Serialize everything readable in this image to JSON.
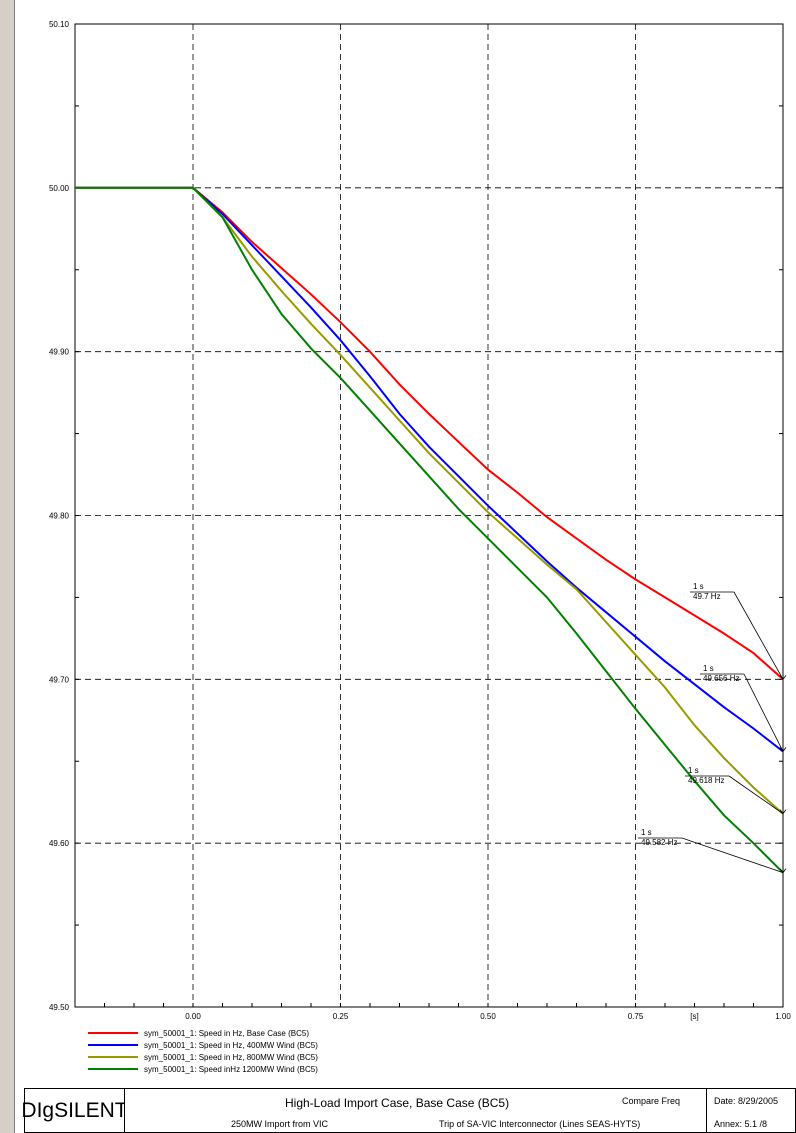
{
  "chart_data": {
    "type": "line",
    "xlabel": "[s]",
    "xlim": [
      -0.2,
      1.0
    ],
    "ylim": [
      49.5,
      50.1
    ],
    "x_ticks": [
      0.0,
      0.25,
      0.5,
      0.75,
      1.0
    ],
    "x_tick_labels": [
      "0.00",
      "0.25",
      "0.50",
      "0.75",
      "1.00"
    ],
    "y_ticks": [
      49.5,
      49.6,
      49.7,
      49.8,
      49.9,
      50.0,
      50.1
    ],
    "y_tick_labels": [
      "49.50",
      "49.60",
      "49.70",
      "49.80",
      "49.90",
      "50.00",
      "50.10"
    ],
    "grid": true,
    "legend_position": "bottom-left",
    "series": [
      {
        "name": "sym_50001_1: Speed in Hz, Base Case (BC5)",
        "color": "#ff0000",
        "x": [
          -0.2,
          0.0,
          0.05,
          0.1,
          0.15,
          0.2,
          0.25,
          0.3,
          0.35,
          0.4,
          0.45,
          0.5,
          0.55,
          0.6,
          0.65,
          0.7,
          0.75,
          0.8,
          0.85,
          0.9,
          0.95,
          1.0
        ],
        "y": [
          50.0,
          50.0,
          49.985,
          49.967,
          49.951,
          49.935,
          49.918,
          49.9,
          49.88,
          49.862,
          49.845,
          49.828,
          49.814,
          49.799,
          49.786,
          49.773,
          49.761,
          49.75,
          49.739,
          49.728,
          49.716,
          49.7
        ]
      },
      {
        "name": "sym_50001_1: Speed in Hz, 400MW Wind (BC5)",
        "color": "#0000ff",
        "x": [
          -0.2,
          0.0,
          0.05,
          0.1,
          0.15,
          0.2,
          0.25,
          0.3,
          0.35,
          0.4,
          0.45,
          0.5,
          0.55,
          0.6,
          0.65,
          0.7,
          0.75,
          0.8,
          0.85,
          0.9,
          0.95,
          1.0
        ],
        "y": [
          50.0,
          50.0,
          49.984,
          49.965,
          49.946,
          49.927,
          49.907,
          49.885,
          49.862,
          49.842,
          49.824,
          49.806,
          49.789,
          49.772,
          49.756,
          49.741,
          49.726,
          49.711,
          49.697,
          49.683,
          49.67,
          49.656
        ]
      },
      {
        "name": "sym_50001_1: Speed in Hz, 800MW Wind (BC5)",
        "color": "#999900",
        "x": [
          -0.2,
          0.0,
          0.05,
          0.1,
          0.15,
          0.2,
          0.25,
          0.3,
          0.35,
          0.4,
          0.45,
          0.5,
          0.55,
          0.6,
          0.65,
          0.7,
          0.75,
          0.8,
          0.85,
          0.9,
          0.95,
          1.0
        ],
        "y": [
          50.0,
          50.0,
          49.982,
          49.958,
          49.937,
          49.917,
          49.898,
          49.878,
          49.858,
          49.838,
          49.82,
          49.802,
          49.786,
          49.77,
          49.755,
          49.735,
          49.715,
          49.695,
          49.672,
          49.652,
          49.634,
          49.618
        ]
      },
      {
        "name": "sym_50001_1: Speed inHz 1200MW Wind (BC5)",
        "color": "#008000",
        "x": [
          -0.2,
          0.0,
          0.05,
          0.1,
          0.15,
          0.2,
          0.25,
          0.3,
          0.35,
          0.4,
          0.45,
          0.5,
          0.55,
          0.6,
          0.65,
          0.7,
          0.75,
          0.8,
          0.85,
          0.9,
          0.95,
          1.0
        ],
        "y": [
          50.0,
          50.0,
          49.982,
          49.95,
          49.923,
          49.902,
          49.884,
          49.864,
          49.844,
          49.824,
          49.804,
          49.786,
          49.768,
          49.75,
          49.728,
          49.705,
          49.682,
          49.66,
          49.638,
          49.617,
          49.6,
          49.582
        ]
      }
    ],
    "annotations": [
      {
        "x": 1.0,
        "y": 49.7,
        "label_time": "1 s",
        "label_value": "49.7 Hz"
      },
      {
        "x": 1.0,
        "y": 49.656,
        "label_time": "1 s",
        "label_value": "49.656 Hz"
      },
      {
        "x": 1.0,
        "y": 49.618,
        "label_time": "1 s",
        "label_value": "49.618 Hz"
      },
      {
        "x": 1.0,
        "y": 49.582,
        "label_time": "1 s",
        "label_value": "49.582 Hz"
      }
    ]
  },
  "title_block": {
    "brand": "DIgSILENT",
    "title": "High-Load Import Case, Base Case (BC5)",
    "subtitle_left": "250MW Import from VIC",
    "subtitle_right": "Trip of SA-VIC Interconnector (Lines SEAS-HYTS)",
    "plot_name": "Compare Freq",
    "date": "Date:  8/29/2005",
    "annex": "Annex: 5.1 /8"
  }
}
